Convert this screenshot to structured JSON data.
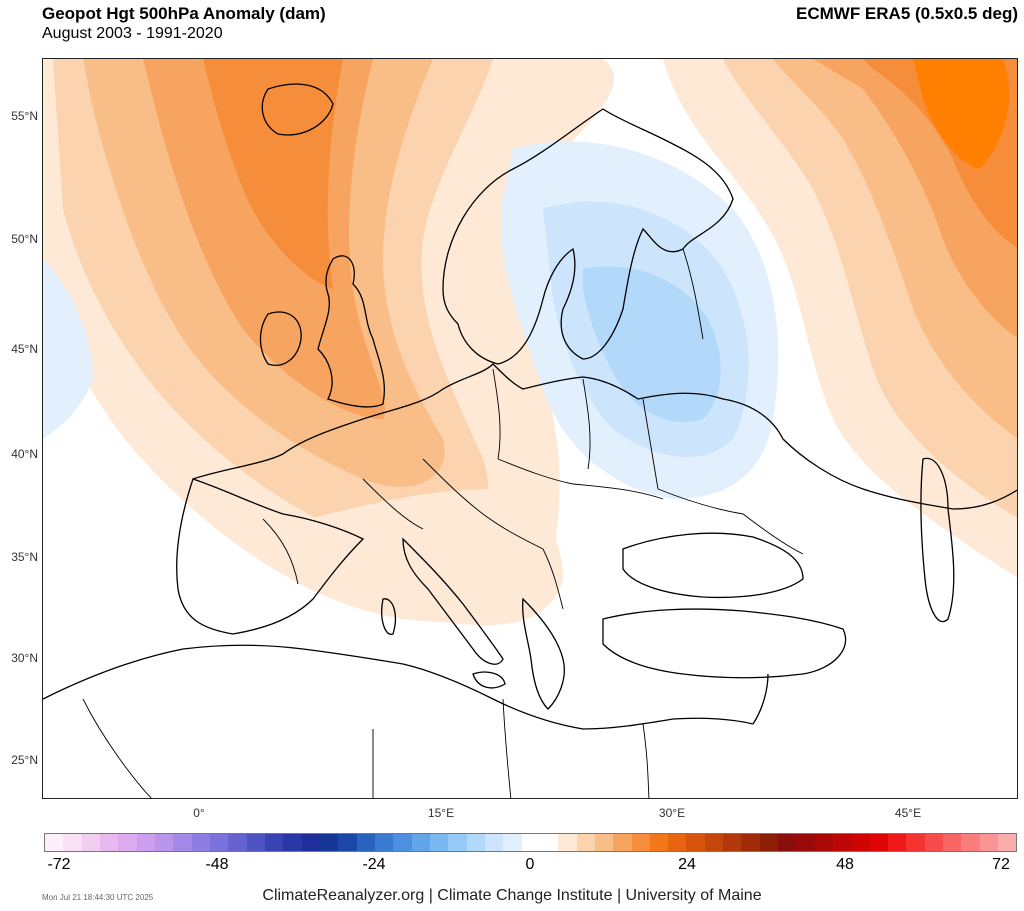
{
  "header": {
    "title": "Geopot Hgt 500hPa Anomaly (dam)",
    "subtitle": "August 2003 - 1991-2020",
    "source": "ECMWF ERA5 (0.5x0.5 deg)"
  },
  "map": {
    "lat_labels": [
      "55°N",
      "50°N",
      "45°N",
      "40°N",
      "35°N",
      "30°N",
      "25°N"
    ],
    "lon_labels": [
      "0°",
      "15°E",
      "30°E",
      "45°E"
    ],
    "anomaly_fields": [
      {
        "region": "British Isles / North Sea",
        "level": "positive-strong",
        "color": "#f08a30"
      },
      {
        "region": "Northern Russia / Barents",
        "level": "positive-strongest",
        "color": "#ff7f00"
      },
      {
        "region": "Central Europe",
        "level": "positive-moderate",
        "color": "#f9c79a"
      },
      {
        "region": "Baltic / Belarus",
        "level": "negative-weak",
        "color": "#cfe5fa"
      },
      {
        "region": "Western Atlantic edge",
        "level": "negative-weak",
        "color": "#e6f1fc"
      }
    ]
  },
  "colorbar": {
    "ticks": [
      "-72",
      "-48",
      "-24",
      "0",
      "24",
      "48",
      "72"
    ],
    "colors": [
      "#fdf0fa",
      "#f8e0f5",
      "#f1cdf0",
      "#e9b8ee",
      "#ddaaf0",
      "#cc9eee",
      "#b995ec",
      "#a48ae8",
      "#8f7ee2",
      "#7a71da",
      "#6563d0",
      "#4f52c3",
      "#3a43b4",
      "#2a37a7",
      "#1e2f9c",
      "#163696",
      "#1b48a8",
      "#2a62c0",
      "#3a7ad0",
      "#4d90df",
      "#62a5e9",
      "#7ab8f1",
      "#95c9f7",
      "#b2d8fa",
      "#cce5fc",
      "#e2f0fd",
      "#ffffff",
      "#ffffff",
      "#fde9d6",
      "#fbd3ae",
      "#f9bd87",
      "#f7a460",
      "#f68d3a",
      "#f27719",
      "#e86410",
      "#d7540c",
      "#c5460c",
      "#b2380b",
      "#9f2b09",
      "#8c1e08",
      "#8b0e0e",
      "#9a0a0a",
      "#ab0808",
      "#bd0606",
      "#cf0404",
      "#e00505",
      "#ee1a1a",
      "#f53333",
      "#f64c4c",
      "#f76565",
      "#f87d7d",
      "#fa9595",
      "#fbadad"
    ]
  },
  "footer": {
    "timestamp": "Mon Jul 21 18:44:30 UTC 2025",
    "credit": "ClimateReanalyzer.org | Climate Change Institute | University of Maine"
  }
}
